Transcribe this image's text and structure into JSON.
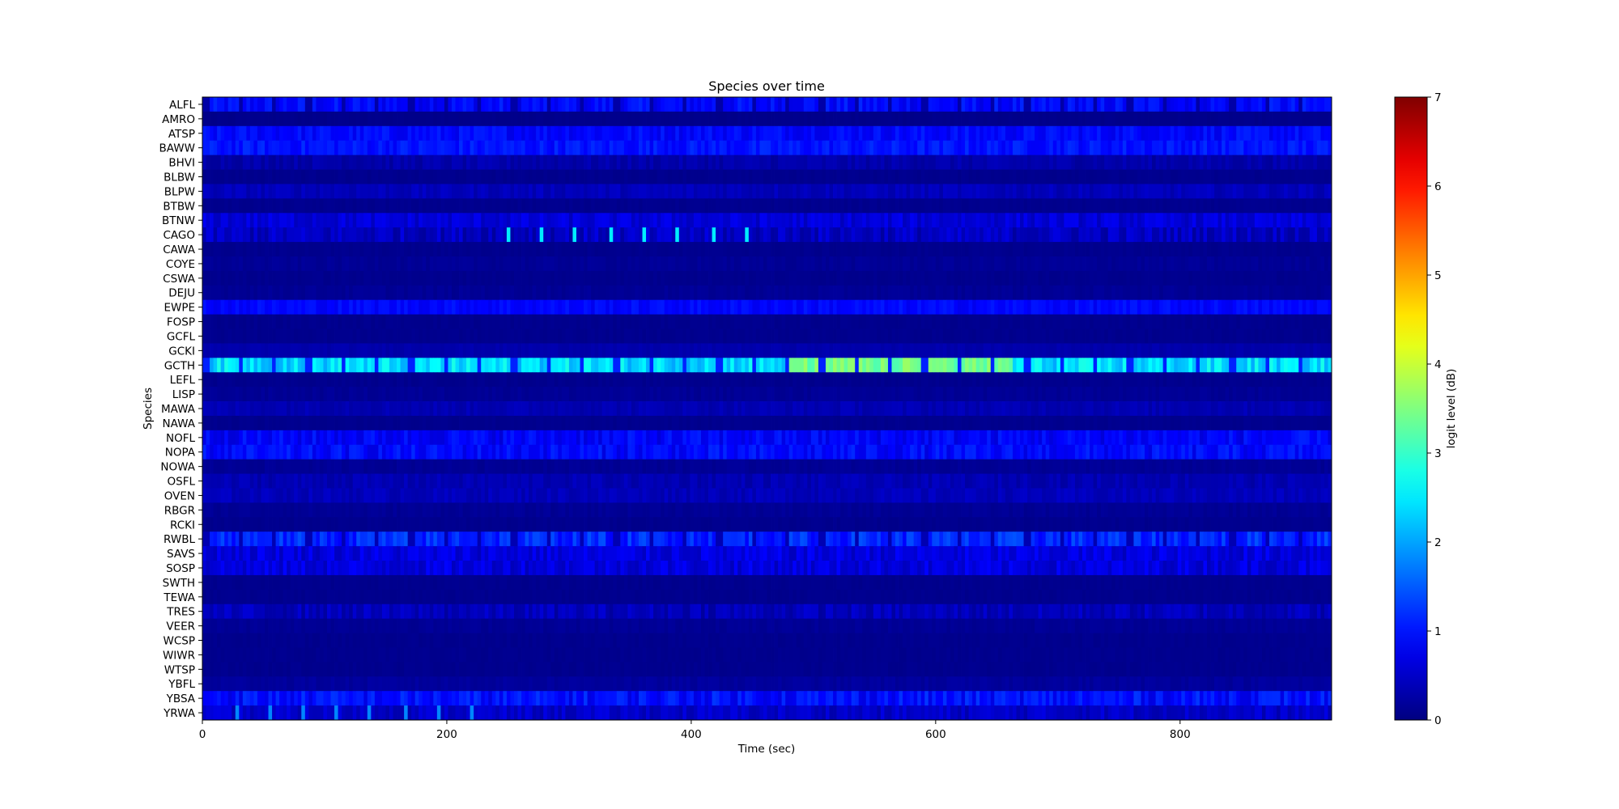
{
  "chart_data": {
    "type": "heatmap",
    "title": "Species over time",
    "xlabel": "Time (sec)",
    "ylabel": "Species",
    "xlim": [
      0,
      924
    ],
    "x_ticks": [
      0,
      200,
      400,
      600,
      800
    ],
    "bin_seconds": 3,
    "colorbar": {
      "label": "logit level (dB)",
      "range": [
        0,
        7
      ],
      "ticks": [
        0,
        1,
        2,
        3,
        4,
        5,
        6,
        7
      ],
      "colormap": "jet"
    },
    "periodic_gap_seconds": 28,
    "species": [
      {
        "name": "ALFL",
        "mean": 0.9,
        "var": 0.25,
        "gaps": true
      },
      {
        "name": "AMRO",
        "mean": 0.08,
        "var": 0.02
      },
      {
        "name": "ATSP",
        "mean": 0.9,
        "var": 0.2
      },
      {
        "name": "BAWW",
        "mean": 1.0,
        "var": 0.2
      },
      {
        "name": "BHVI",
        "mean": 0.3,
        "var": 0.12
      },
      {
        "name": "BLBW",
        "mean": 0.1,
        "var": 0.03
      },
      {
        "name": "BLPW",
        "mean": 0.4,
        "var": 0.12
      },
      {
        "name": "BTBW",
        "mean": 0.1,
        "var": 0.03
      },
      {
        "name": "BTNW",
        "mean": 0.6,
        "var": 0.2
      },
      {
        "name": "CAGO",
        "mean": 0.45,
        "var": 0.25,
        "spikes": [
          250,
          278,
          305,
          333,
          361,
          389,
          417,
          445
        ],
        "spike_level": 2.5
      },
      {
        "name": "CAWA",
        "mean": 0.1,
        "var": 0.03
      },
      {
        "name": "COYE",
        "mean": 0.15,
        "var": 0.05
      },
      {
        "name": "CSWA",
        "mean": 0.1,
        "var": 0.03
      },
      {
        "name": "DEJU",
        "mean": 0.15,
        "var": 0.05
      },
      {
        "name": "EWPE",
        "mean": 0.9,
        "var": 0.15
      },
      {
        "name": "FOSP",
        "mean": 0.1,
        "var": 0.03
      },
      {
        "name": "GCFL",
        "mean": 0.1,
        "var": 0.03
      },
      {
        "name": "GCKI",
        "mean": 0.3,
        "var": 0.05
      },
      {
        "name": "GCTH",
        "mean": 2.4,
        "var": 0.4,
        "gaps": true,
        "gap_level": 1.1,
        "peak_window": [
          480,
          660
        ],
        "peak_level": 3.4
      },
      {
        "name": "LEFL",
        "mean": 0.1,
        "var": 0.03
      },
      {
        "name": "LISP",
        "mean": 0.15,
        "var": 0.05
      },
      {
        "name": "MAWA",
        "mean": 0.35,
        "var": 0.1
      },
      {
        "name": "NAWA",
        "mean": 0.1,
        "var": 0.03
      },
      {
        "name": "NOFL",
        "mean": 0.85,
        "var": 0.25
      },
      {
        "name": "NOPA",
        "mean": 0.9,
        "var": 0.25
      },
      {
        "name": "NOWA",
        "mean": 0.15,
        "var": 0.05
      },
      {
        "name": "OSFL",
        "mean": 0.35,
        "var": 0.12
      },
      {
        "name": "OVEN",
        "mean": 0.4,
        "var": 0.12
      },
      {
        "name": "RBGR",
        "mean": 0.15,
        "var": 0.05
      },
      {
        "name": "RCKI",
        "mean": 0.1,
        "var": 0.03
      },
      {
        "name": "RWBL",
        "mean": 1.15,
        "var": 0.3,
        "gaps": true
      },
      {
        "name": "SAVS",
        "mean": 0.65,
        "var": 0.25
      },
      {
        "name": "SOSP",
        "mean": 0.65,
        "var": 0.25
      },
      {
        "name": "SWTH",
        "mean": 0.1,
        "var": 0.03
      },
      {
        "name": "TEWA",
        "mean": 0.1,
        "var": 0.03
      },
      {
        "name": "TRES",
        "mean": 0.4,
        "var": 0.2
      },
      {
        "name": "VEER",
        "mean": 0.15,
        "var": 0.05
      },
      {
        "name": "WCSP",
        "mean": 0.1,
        "var": 0.03
      },
      {
        "name": "WIWR",
        "mean": 0.1,
        "var": 0.03
      },
      {
        "name": "WTSP",
        "mean": 0.1,
        "var": 0.03
      },
      {
        "name": "YBFL",
        "mean": 0.2,
        "var": 0.06
      },
      {
        "name": "YBSA",
        "mean": 0.95,
        "var": 0.3
      },
      {
        "name": "YRWA",
        "mean": 0.5,
        "var": 0.2,
        "spikes": [
          27,
          55,
          82,
          110,
          137,
          165,
          193,
          220
        ],
        "spike_level": 1.8
      }
    ]
  }
}
